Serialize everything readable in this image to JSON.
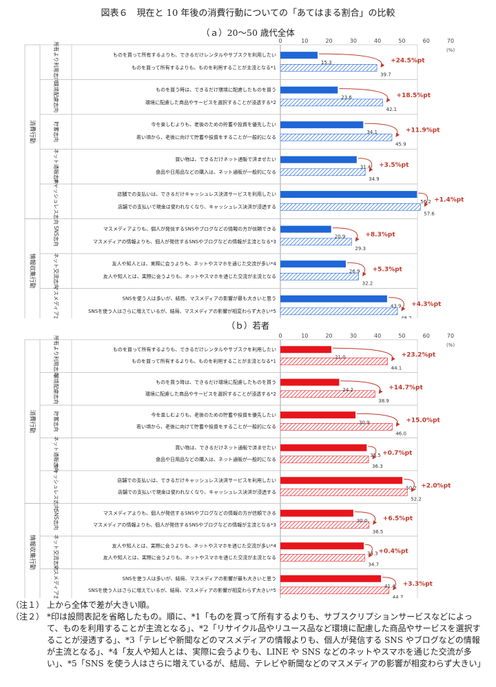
{
  "title": "図表６　現在と 10 年後の消費行動についての「あてはまる割合」の比較",
  "chart_data": [
    {
      "type": "bar",
      "subtitle": "（ａ）20～50 歳代全体",
      "axis_max": 70,
      "ticks": [
        0,
        10,
        20,
        30,
        40,
        50,
        60,
        70
      ],
      "unit": "(%)",
      "highlight_color": "#1f66d6",
      "outer_groups": [
        {
          "label": "消費行動",
          "first": 0,
          "last": 4
        },
        {
          "label": "情報収集行動",
          "first": 5,
          "last": 7
        }
      ],
      "groups": [
        {
          "label": "所有より利用志向",
          "statements": [
            "ものを買って所有するよりも、できるだけレンタルやサブスクを利用したい",
            "ものを買って所有するよりも、ものを利用することが主流となる*1"
          ],
          "current": 15.3,
          "future": 39.7,
          "diff": "+24.5%pt"
        },
        {
          "label": "環境配慮志向",
          "statements": [
            "ものを買う時は、できるだけ環境に配慮したものを買う",
            "環境に配慮した商品やサービスを選択することが浸透する*2"
          ],
          "current": 23.6,
          "future": 42.1,
          "diff": "+18.5%pt"
        },
        {
          "label": "貯蓄志向",
          "statements": [
            "今を楽しむよりも、老後のための貯蓄や投資を優先したい",
            "若い頃から、老後に向けて貯蓄や投資をすることが一般的になる"
          ],
          "current": 34.1,
          "future": 45.9,
          "diff": "+11.9%pt"
        },
        {
          "label": "ネット通販志向",
          "statements": [
            "買い物は、できるだけネット通販で済ませたい",
            "食品や日用品などの購入は、ネット通販が一般的になる"
          ],
          "current": 31.4,
          "future": 34.9,
          "diff": "+3.5%pt"
        },
        {
          "label": "キャッシュレス志向",
          "statements": [
            "店舗での支払いは、できるだけキャッシュレス決済サービスを利用したい",
            "店舗での支払いで現金は使われなくなり、キャッシュレス決済が浸透する"
          ],
          "current": 56.2,
          "future": 57.6,
          "diff": "+1.4%pt"
        },
        {
          "label": "SNS志向",
          "statements": [
            "マスメディアよりも、個人が発信するSNSやブログなどの情報の方が信頼できる",
            "マスメディアの情報よりも、個人が発信するSNSやブログなどの情報が主流となる*3"
          ],
          "current": 20.9,
          "future": 29.3,
          "diff": "+8.3%pt"
        },
        {
          "label": "ネット交流志向",
          "statements": [
            "友人や知人とは、実際に会うよりも、ネットやスマホを通じた交流が多い*4",
            "友人や知人とは、実際に会うよりも、ネットやスマホを通じた交流が主流となる"
          ],
          "current": 26.9,
          "future": 32.2,
          "diff": "+5.3%pt"
        },
        {
          "label": "マスメディア志向",
          "statements": [
            "SNSを使う人は多いが、結局、マスメディアの影響が最も大きいと思う",
            "SNSを使う人はさらに増えているが、結局、マスメディアの影響が相変わらず大きい*5"
          ],
          "current": 43.9,
          "future": 48.2,
          "diff": "+4.3%pt"
        }
      ]
    },
    {
      "type": "bar",
      "subtitle": "（ｂ）若者",
      "axis_max": 70,
      "ticks": [
        0,
        10,
        20,
        30,
        40,
        50,
        60,
        70
      ],
      "unit": "(%)",
      "highlight_color": "#e8141b",
      "outer_groups": [
        {
          "label": "消費行動",
          "first": 0,
          "last": 4
        },
        {
          "label": "情報収集行動",
          "first": 5,
          "last": 7
        }
      ],
      "groups": [
        {
          "label": "所有より利用志向",
          "statements": [
            "ものを買って所有するよりも、できるだけレンタルやサブスクを利用したい",
            "ものを買って所有するよりも、ものを利用することが主流となる*1"
          ],
          "current": 21.0,
          "future": 44.1,
          "diff": "+23.2%pt"
        },
        {
          "label": "環境配慮志向",
          "statements": [
            "ものを買う時は、できるだけ環境に配慮したものを買う",
            "環境に配慮した商品やサービスを選択することが浸透する*2"
          ],
          "current": 24.2,
          "future": 38.9,
          "diff": "+14.7%pt"
        },
        {
          "label": "貯蓄志向",
          "statements": [
            "今を楽しむよりも、老後のための貯蓄や投資を優先したい",
            "若い頃から、老後に向けて貯蓄や投資をすることが一般的になる"
          ],
          "current": 30.9,
          "future": 46.0,
          "diff": "+15.0%pt"
        },
        {
          "label": "ネット通販志向",
          "statements": [
            "買い物は、できるだけネット通販で済ませたい",
            "食品や日用品などの購入は、ネット通販が一般的になる"
          ],
          "current": 35.5,
          "future": 36.3,
          "diff": "+0.7%pt"
        },
        {
          "label": "キャッシュレス志向",
          "statements": [
            "店舗での支払いは、できるだけキャッシュレス決済サービスを利用したい",
            "店舗での支払いで現金は使われなくなり、キャッシュレス決済が浸透する"
          ],
          "current": 50.2,
          "future": 52.2,
          "diff": "+2.0%pt"
        },
        {
          "label": "SNS志向",
          "statements": [
            "マスメディアよりも、個人が発信するSNSやブログなどの情報の方が信頼できる",
            "マスメディアの情報よりも、個人が発信するSNSやブログなどの情報が主流となる*3"
          ],
          "current": 30.0,
          "future": 36.5,
          "diff": "+6.5%pt"
        },
        {
          "label": "ネット交流志向",
          "statements": [
            "友人や知人とは、実際に会うよりも、ネットやスマホを通じた交流が多い*4",
            "友人や知人とは、実際に会うよりも、ネットやスマホを通じた交流が主流となる"
          ],
          "current": 34.3,
          "future": 34.7,
          "diff": "+0.4%pt"
        },
        {
          "label": "マスメディア志向",
          "statements": [
            "SNSを使う人は多いが、結局、マスメディアの影響が最も大きいと思う",
            "SNSを使う人はさらに増えているが、結局、マスメディアの影響が相変わらず大きい*5"
          ],
          "current": 41.4,
          "future": 44.7,
          "diff": "+3.3%pt"
        }
      ]
    }
  ],
  "notes": [
    {
      "label": "（注１）",
      "text": "上から全体で差が大きい順。"
    },
    {
      "label": "（注２）",
      "text": "*印は設問表記を省略したもの。順に、*1「ものを買って所有するよりも、サブスクリプションサービスなどによって、ものを利用することが主流となる」、*2「リサイクル品やリユース品など環境に配慮した商品やサービスを選択することが浸透する」、*3「テレビや新聞などのマスメディアの情報よりも、個人が発信する SNS やブログなどの情報が主流となる」、*4「友人や知人とは、実際に会うよりも、LINE や SNS などのネットやスマホを通じた交流が多い」、*5「SNS を使う人はさらに増えているが、結局、テレビや新聞などのマスメディアの影響が相変わらず大きい」"
    }
  ]
}
